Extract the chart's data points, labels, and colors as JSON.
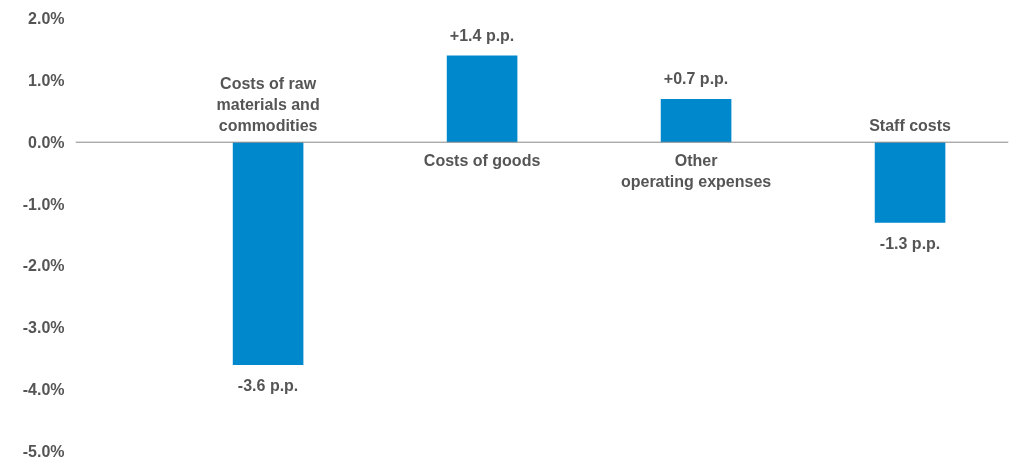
{
  "chart_data": {
    "type": "bar",
    "categories": [
      "Costs of raw\nmaterials and\ncommodities",
      "Costs of goods",
      "Other\noperating expenses",
      "Staff costs"
    ],
    "values": [
      -3.6,
      1.4,
      0.7,
      -1.3
    ],
    "value_labels": [
      "-3.6 p.p.",
      "+1.4 p.p.",
      "+0.7 p.p.",
      "-1.3 p.p."
    ],
    "color": "#0088cc",
    "ylim": [
      -5,
      2
    ],
    "yticks": [
      {
        "value": 2,
        "label": "2.0%"
      },
      {
        "value": 1,
        "label": "1.0%"
      },
      {
        "value": 0,
        "label": "0.0%"
      },
      {
        "value": -1,
        "label": "-1.0%"
      },
      {
        "value": -2,
        "label": "-2.0%"
      },
      {
        "value": -3,
        "label": "-3.0%"
      },
      {
        "value": -4,
        "label": "-4.0%"
      },
      {
        "value": -5,
        "label": "-5.0%"
      }
    ],
    "grid": false
  }
}
